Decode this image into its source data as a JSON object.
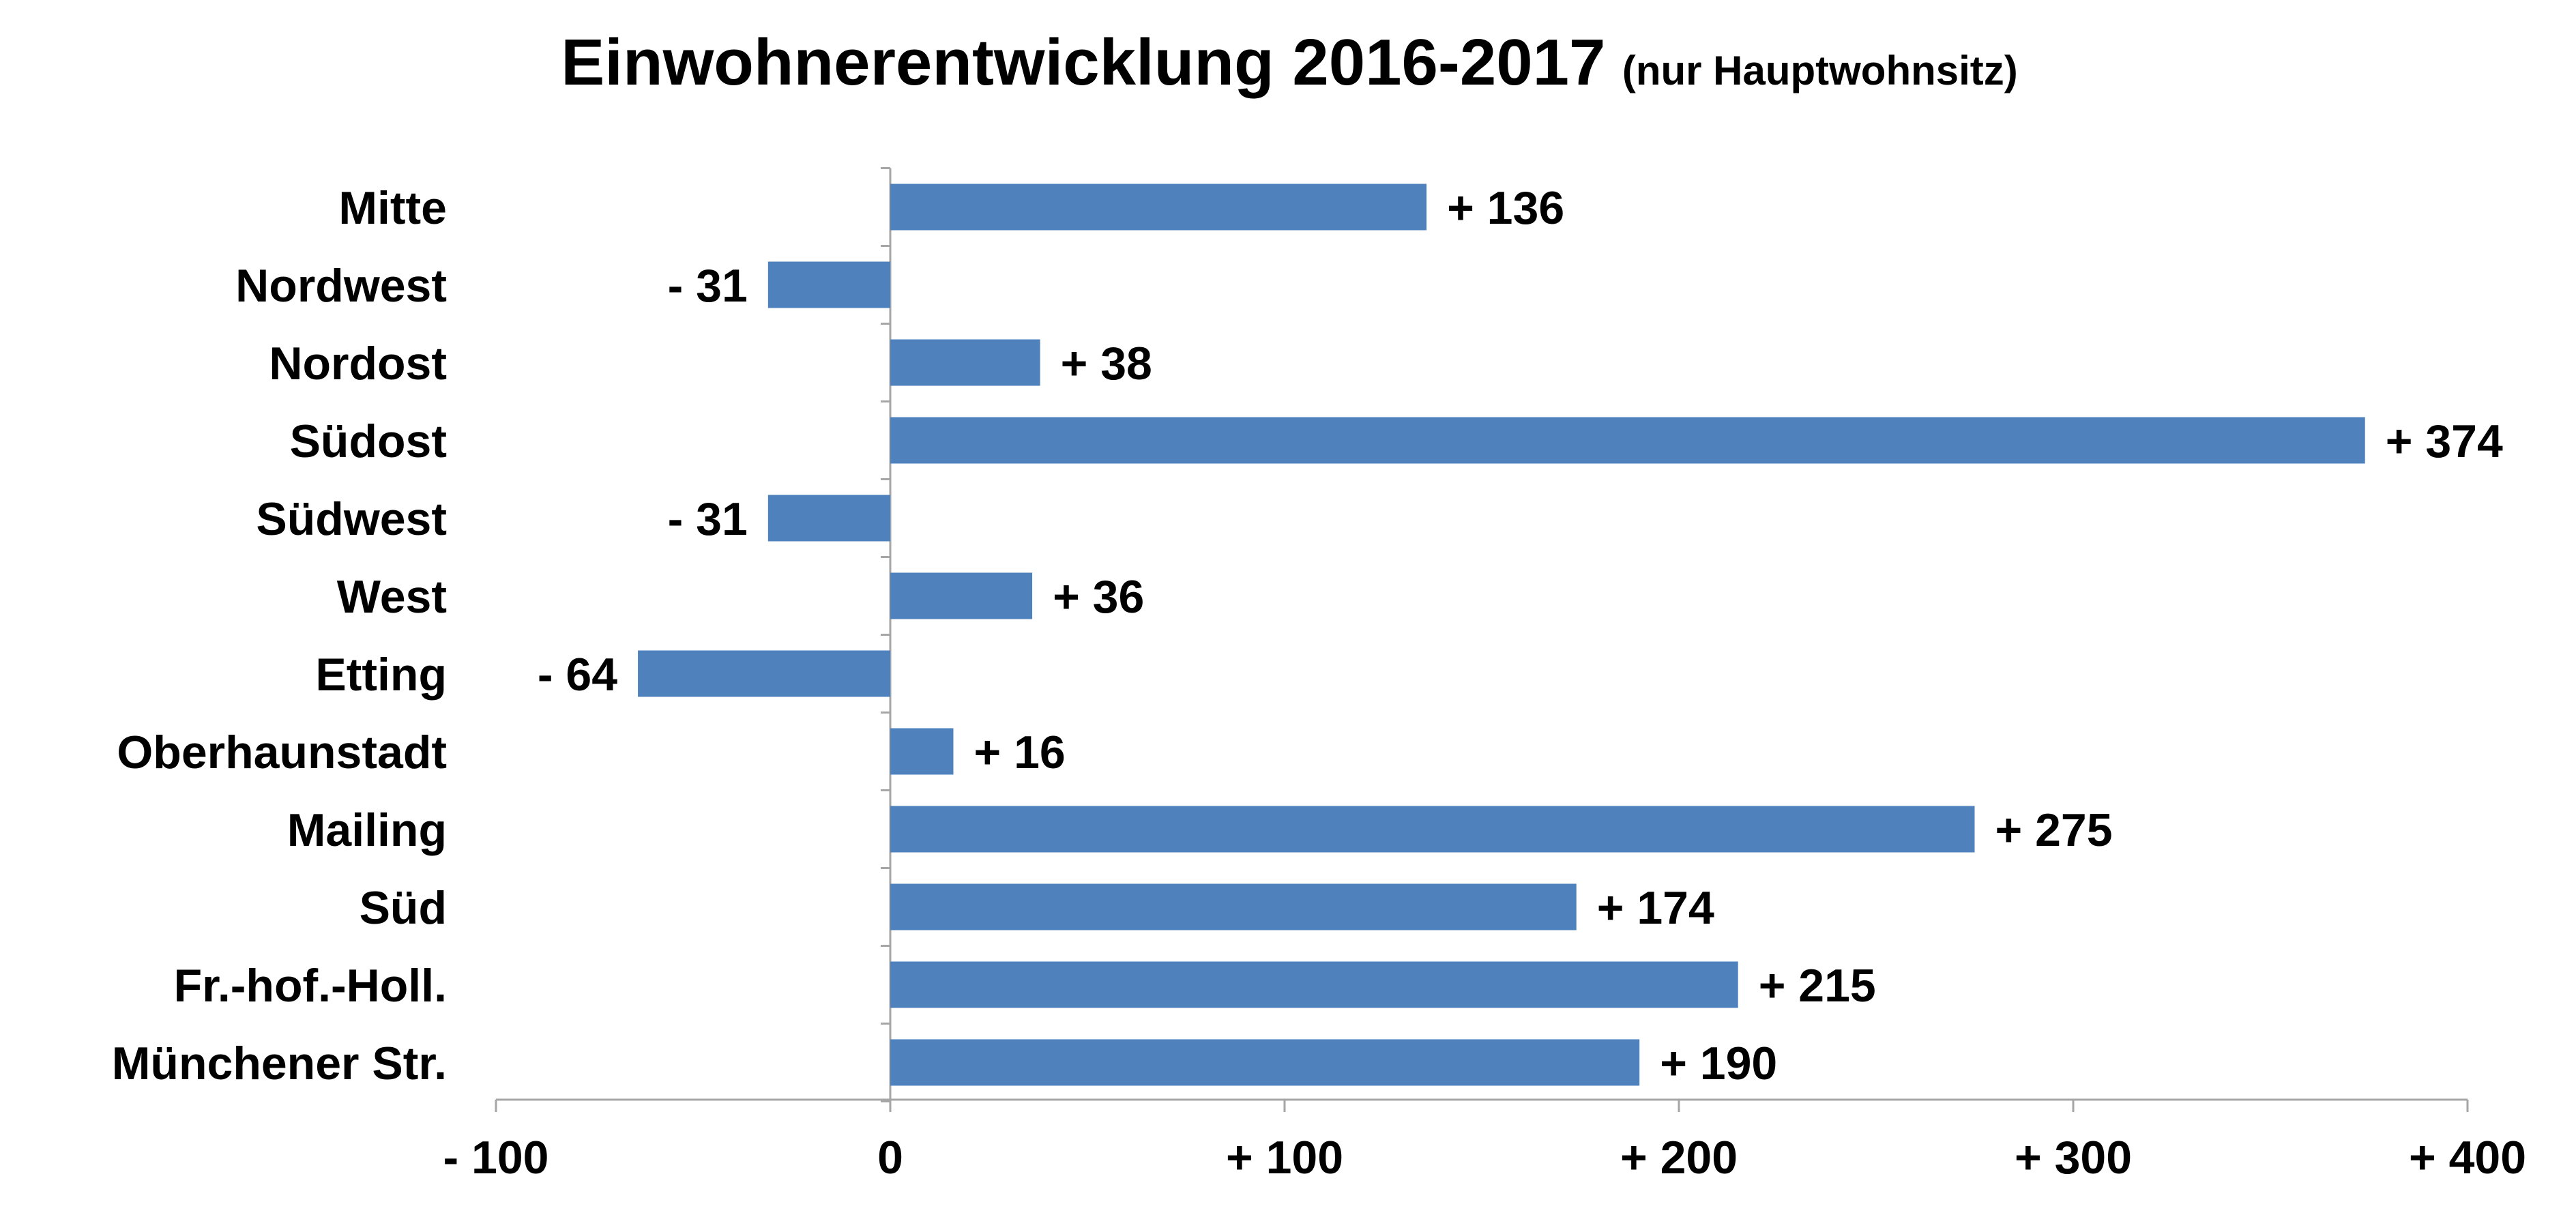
{
  "chart_data": {
    "type": "bar",
    "orientation": "horizontal",
    "title": "Einwohnerentwicklung 2016-2017",
    "subtitle": "(nur Hauptwohnsitz)",
    "categories": [
      "Mitte",
      "Nordwest",
      "Nordost",
      "Südost",
      "Südwest",
      "West",
      "Etting",
      "Oberhaunstadt",
      "Mailing",
      "Süd",
      "Fr.-hof.-Holl.",
      "Münchener Str."
    ],
    "values": [
      136,
      -31,
      38,
      374,
      -31,
      36,
      -64,
      16,
      275,
      174,
      215,
      190
    ],
    "data_labels": [
      "+ 136",
      "- 31",
      "+ 38",
      "+ 374",
      "- 31",
      "+ 36",
      "- 64",
      "+ 16",
      "+ 275",
      "+ 174",
      "+ 215",
      "+ 190"
    ],
    "xlim": [
      -100,
      400
    ],
    "x_ticks": [
      -100,
      0,
      100,
      200,
      300,
      400
    ],
    "x_tick_labels": [
      "- 100",
      "0",
      "+ 100",
      "+ 200",
      "+ 300",
      "+ 400"
    ],
    "xlabel": "",
    "ylabel": "",
    "grid": false,
    "legend": "none",
    "bar_color": "#4F81BD",
    "axis_color": "#A6A6A6"
  }
}
